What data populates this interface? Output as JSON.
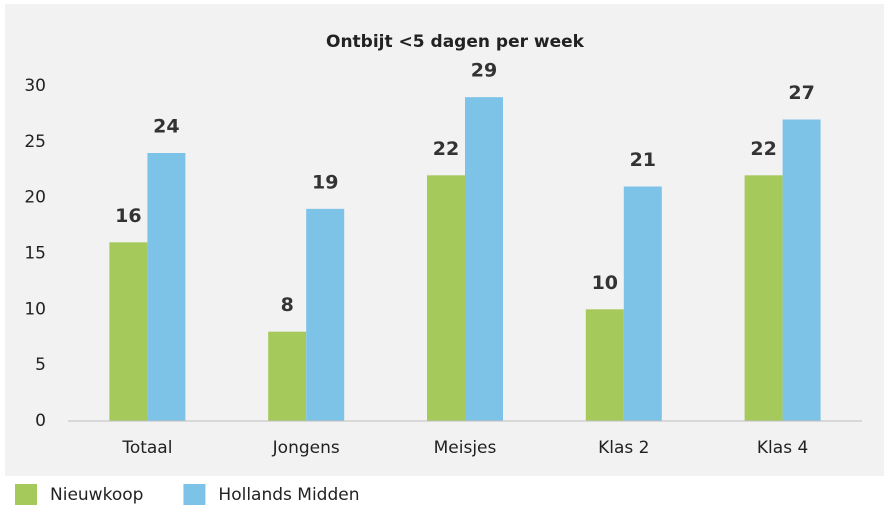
{
  "chart_data": {
    "type": "bar",
    "title": "Ontbijt <5 dagen per week",
    "categories": [
      "Totaal",
      "Jongens",
      "Meisjes",
      "Klas 2",
      "Klas 4"
    ],
    "series": [
      {
        "name": "Nieuwkoop",
        "color": "#a5c95a",
        "values": [
          16,
          8,
          22,
          10,
          22
        ]
      },
      {
        "name": "Hollands Midden",
        "color": "#7dc3e8",
        "values": [
          24,
          19,
          29,
          21,
          27
        ]
      }
    ],
    "ylim": [
      0,
      30
    ],
    "yticks": [
      0,
      5,
      10,
      15,
      20,
      25,
      30
    ],
    "grid": false,
    "legend": "bottom"
  }
}
